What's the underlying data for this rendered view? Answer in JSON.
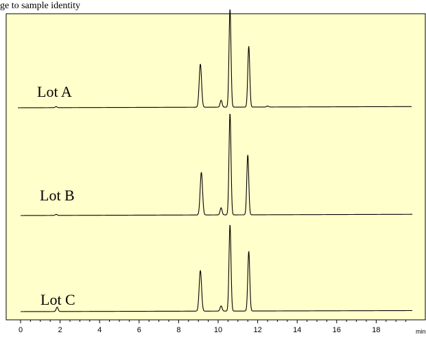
{
  "header_text": "ge to sample identity",
  "colors": {
    "plot_background": "#ffffcc",
    "axis": "#000000",
    "trace": "#000000"
  },
  "chart_data": {
    "type": "line",
    "title": "",
    "xlabel": "",
    "x_unit": "min",
    "ylabel": "",
    "xlim": [
      0,
      20
    ],
    "xticks": [
      0,
      2,
      4,
      6,
      8,
      10,
      12,
      14,
      16,
      18
    ],
    "grid": false,
    "legend": "none",
    "series": [
      {
        "name": "Lot A",
        "peaks": [
          {
            "rt": 1.8,
            "height": 0.01,
            "width": 0.05
          },
          {
            "rt": 9.1,
            "height": 0.44,
            "width": 0.06
          },
          {
            "rt": 10.15,
            "height": 0.07,
            "width": 0.05
          },
          {
            "rt": 10.6,
            "height": 1.0,
            "width": 0.05
          },
          {
            "rt": 11.55,
            "height": 0.62,
            "width": 0.05
          },
          {
            "rt": 12.5,
            "height": 0.01,
            "width": 0.05
          }
        ]
      },
      {
        "name": "Lot B",
        "peaks": [
          {
            "rt": 1.8,
            "height": 0.01,
            "width": 0.05
          },
          {
            "rt": 9.15,
            "height": 0.42,
            "width": 0.06
          },
          {
            "rt": 10.15,
            "height": 0.07,
            "width": 0.05
          },
          {
            "rt": 10.6,
            "height": 1.0,
            "width": 0.05
          },
          {
            "rt": 11.5,
            "height": 0.59,
            "width": 0.05
          }
        ]
      },
      {
        "name": "Lot C",
        "peaks": [
          {
            "rt": 1.85,
            "height": 0.05,
            "width": 0.05
          },
          {
            "rt": 9.1,
            "height": 0.47,
            "width": 0.06
          },
          {
            "rt": 10.15,
            "height": 0.06,
            "width": 0.05
          },
          {
            "rt": 10.6,
            "height": 1.0,
            "width": 0.05
          },
          {
            "rt": 11.55,
            "height": 0.69,
            "width": 0.05
          }
        ]
      }
    ]
  }
}
